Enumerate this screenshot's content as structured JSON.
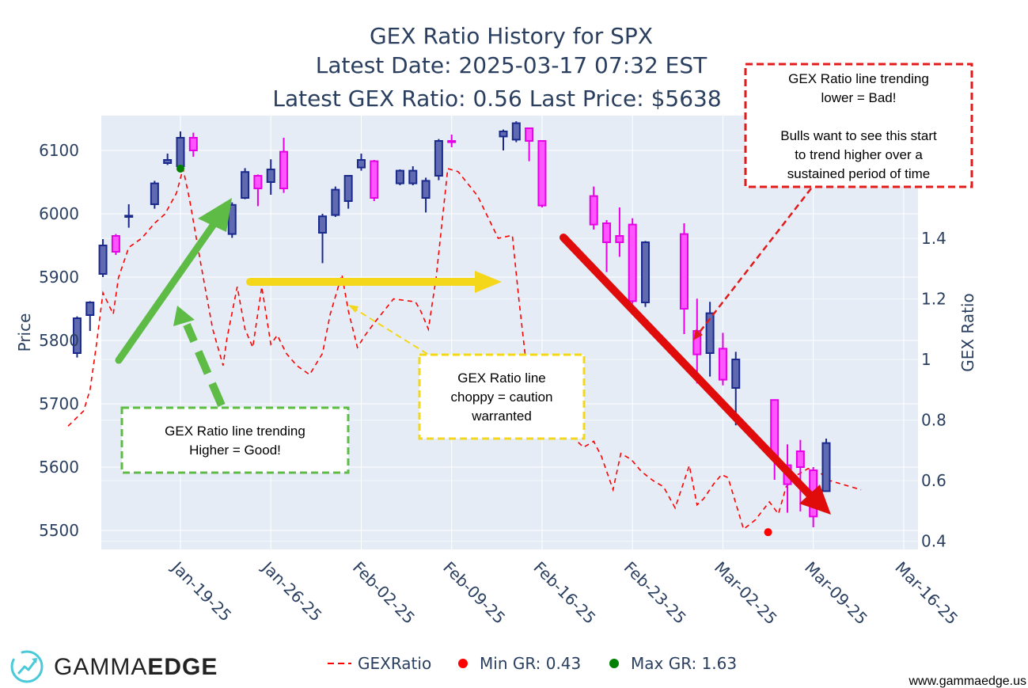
{
  "chart_data": {
    "type": "candlestick+line",
    "title": [
      "GEX Ratio History for SPX",
      "Latest Date: 2025-03-17 07:32 EST",
      "Latest GEX Ratio: 0.56 Last Price: $5638"
    ],
    "ylabel": "Price",
    "y2label": "GEX Ratio",
    "ylim": [
      5470,
      6155
    ],
    "y2lim": [
      0.373,
      1.805
    ],
    "y_ticks": [
      "5500",
      "5600",
      "5700",
      "5800",
      "5900",
      "6000",
      "6100"
    ],
    "y2_ticks": [
      "0.4",
      "0.6",
      "0.8",
      "1",
      "1.2",
      "1.4"
    ],
    "x_ticks": [
      "Jan-19-25",
      "Jan-26-25",
      "Feb-02-25",
      "Feb-09-25",
      "Feb-16-25",
      "Feb-23-25",
      "Mar-02-25",
      "Mar-09-25",
      "Mar-16-25"
    ],
    "candles": [
      {
        "day": -8.0,
        "o": 5780,
        "h": 5838,
        "l": 5773,
        "c": 5835
      },
      {
        "day": -7.0,
        "o": 5840,
        "h": 5862,
        "l": 5815,
        "c": 5860
      },
      {
        "day": -6.0,
        "o": 5905,
        "h": 5960,
        "l": 5900,
        "c": 5950
      },
      {
        "day": -5.0,
        "o": 5965,
        "h": 5968,
        "l": 5935,
        "c": 5940
      },
      {
        "day": -4.0,
        "o": 5995,
        "h": 6015,
        "l": 5978,
        "c": 5997
      },
      {
        "day": -2.0,
        "o": 6015,
        "h": 6052,
        "l": 6008,
        "c": 6048
      },
      {
        "day": -1.0,
        "o": 6080,
        "h": 6095,
        "l": 6077,
        "c": 6085
      },
      {
        "day": 0.0,
        "o": 6075,
        "h": 6130,
        "l": 6075,
        "c": 6120
      },
      {
        "day": 1.0,
        "o": 6120,
        "h": 6128,
        "l": 6090,
        "c": 6100
      },
      {
        "day": 4.0,
        "o": 5968,
        "h": 6018,
        "l": 5962,
        "c": 6014
      },
      {
        "day": 5.0,
        "o": 6025,
        "h": 6072,
        "l": 6023,
        "c": 6066
      },
      {
        "day": 6.0,
        "o": 6060,
        "h": 6062,
        "l": 6012,
        "c": 6040
      },
      {
        "day": 7.0,
        "o": 6050,
        "h": 6086,
        "l": 6030,
        "c": 6070
      },
      {
        "day": 8.0,
        "o": 6098,
        "h": 6120,
        "l": 6033,
        "c": 6040
      },
      {
        "day": 11.0,
        "o": 5970,
        "h": 6000,
        "l": 5922,
        "c": 5996
      },
      {
        "day": 12.0,
        "o": 5998,
        "h": 6043,
        "l": 5995,
        "c": 6038
      },
      {
        "day": 13.0,
        "o": 6020,
        "h": 6060,
        "l": 6008,
        "c": 6060
      },
      {
        "day": 14.0,
        "o": 6073,
        "h": 6095,
        "l": 6068,
        "c": 6085
      },
      {
        "day": 15.0,
        "o": 6083,
        "h": 6085,
        "l": 6020,
        "c": 6025
      },
      {
        "day": 17.0,
        "o": 6048,
        "h": 6070,
        "l": 6045,
        "c": 6068
      },
      {
        "day": 18.0,
        "o": 6048,
        "h": 6075,
        "l": 6045,
        "c": 6068
      },
      {
        "day": 19.0,
        "o": 6025,
        "h": 6057,
        "l": 6002,
        "c": 6052
      },
      {
        "day": 20.0,
        "o": 6060,
        "h": 6118,
        "l": 6053,
        "c": 6115
      },
      {
        "day": 21.0,
        "o": 6115,
        "h": 6125,
        "l": 6105,
        "c": 6113
      },
      {
        "day": 25.0,
        "o": 6122,
        "h": 6133,
        "l": 6100,
        "c": 6130
      },
      {
        "day": 26.0,
        "o": 6117,
        "h": 6146,
        "l": 6113,
        "c": 6143
      },
      {
        "day": 27.0,
        "o": 6135,
        "h": 6136,
        "l": 6083,
        "c": 6115
      },
      {
        "day": 28.0,
        "o": 6115,
        "h": 6116,
        "l": 6010,
        "c": 6013
      },
      {
        "day": 32.0,
        "o": 6028,
        "h": 6043,
        "l": 5975,
        "c": 5983
      },
      {
        "day": 33.0,
        "o": 5985,
        "h": 5990,
        "l": 5908,
        "c": 5955
      },
      {
        "day": 34.0,
        "o": 5965,
        "h": 6010,
        "l": 5932,
        "c": 5955
      },
      {
        "day": 35.0,
        "o": 5983,
        "h": 5993,
        "l": 5858,
        "c": 5862
      },
      {
        "day": 36.0,
        "o": 5860,
        "h": 5957,
        "l": 5853,
        "c": 5955
      },
      {
        "day": 39.0,
        "o": 5968,
        "h": 5985,
        "l": 5810,
        "c": 5850
      },
      {
        "day": 40.0,
        "o": 5815,
        "h": 5866,
        "l": 5732,
        "c": 5778
      },
      {
        "day": 41.0,
        "o": 5780,
        "h": 5861,
        "l": 5743,
        "c": 5843
      },
      {
        "day": 42.0,
        "o": 5787,
        "h": 5812,
        "l": 5729,
        "c": 5738
      },
      {
        "day": 43.0,
        "o": 5725,
        "h": 5782,
        "l": 5666,
        "c": 5770
      },
      {
        "day": 46.0,
        "o": 5706,
        "h": 5706,
        "l": 5580,
        "c": 5614
      },
      {
        "day": 47.0,
        "o": 5603,
        "h": 5636,
        "l": 5528,
        "c": 5573
      },
      {
        "day": 48.0,
        "o": 5625,
        "h": 5643,
        "l": 5530,
        "c": 5600
      },
      {
        "day": 49.0,
        "o": 5595,
        "h": 5600,
        "l": 5505,
        "c": 5522
      },
      {
        "day": 50.0,
        "o": 5562,
        "h": 5645,
        "l": 5562,
        "c": 5638
      }
    ],
    "series": [
      {
        "name": "GEXRatio",
        "color": "#ff0000",
        "style": "dashed",
        "axis": "y2",
        "x": [
          -8.7,
          -7.5,
          -7.0,
          -6.5,
          -6.0,
          -5.2,
          -4.8,
          -4.0,
          -3.0,
          -2.0,
          -1.2,
          -0.3,
          0.2,
          0.7,
          1.6,
          2.5,
          3.3,
          3.6,
          4.4,
          5.0,
          5.6,
          6.3,
          7.0,
          7.5,
          8.2,
          9.0,
          10.0,
          11.0,
          11.6,
          12.5,
          13.0,
          13.7,
          14.3,
          15.0,
          16.5,
          18.2,
          18.6,
          19.2,
          19.8,
          20.7,
          21.5,
          23.0,
          24.6,
          25.7,
          26.2,
          27.0,
          27.6,
          29.0,
          30.0,
          31.2,
          32.0,
          32.6,
          33.5,
          34.1,
          34.9,
          35.7,
          36.6,
          37.4,
          38.3,
          39.4,
          40.0,
          40.5,
          41.3,
          41.9,
          42.4,
          43.6,
          44.5,
          45.6,
          46.3,
          46.9,
          47.8,
          48.6,
          49.4,
          50.3,
          51.1,
          51.9,
          52.7
        ],
        "y": [
          0.78,
          0.83,
          0.9,
          1.05,
          1.22,
          1.15,
          1.27,
          1.37,
          1.4,
          1.45,
          1.48,
          1.55,
          1.63,
          1.53,
          1.31,
          1.1,
          0.98,
          1.07,
          1.24,
          1.1,
          1.04,
          1.24,
          1.05,
          1.08,
          1.02,
          0.98,
          0.95,
          1.02,
          1.15,
          1.28,
          1.16,
          1.04,
          1.08,
          1.12,
          1.2,
          1.19,
          1.16,
          1.1,
          1.27,
          1.63,
          1.62,
          1.54,
          1.4,
          1.41,
          1.2,
          0.9,
          0.86,
          0.8,
          0.76,
          0.71,
          0.73,
          0.68,
          0.57,
          0.69,
          0.67,
          0.63,
          0.6,
          0.58,
          0.51,
          0.65,
          0.52,
          0.54,
          0.59,
          0.62,
          0.61,
          0.44,
          0.47,
          0.53,
          0.49,
          0.58,
          0.62,
          0.64,
          0.63,
          0.6,
          0.59,
          0.58,
          0.57
        ]
      },
      {
        "name": "Min GR: 0.43",
        "color": "#ff0000",
        "style": "marker",
        "axis": "y2",
        "x": [
          45.5
        ],
        "y": [
          0.43
        ]
      },
      {
        "name": "Max GR: 1.63",
        "color": "#008000",
        "style": "marker",
        "axis": "y2",
        "x": [
          0.0
        ],
        "y": [
          1.63
        ]
      }
    ],
    "legend": [
      {
        "label": "GEXRatio",
        "color": "#ff0000",
        "kind": "dash"
      },
      {
        "label": "Min GR: 0.43",
        "color": "#ff0000",
        "kind": "dot"
      },
      {
        "label": "Max GR: 1.63",
        "color": "#008000",
        "kind": "dot"
      }
    ],
    "annotations": [
      {
        "lines": [
          "GEX Ratio line trending",
          "Higher = Good!"
        ],
        "border": "#5dbb46"
      },
      {
        "lines": [
          "GEX Ratio line",
          "choppy = caution",
          "warranted"
        ],
        "border": "#f4d71a"
      },
      {
        "lines": [
          "GEX Ratio line trending",
          "lower = Bad!",
          "",
          "Bulls want to see this start",
          "to trend higher over a",
          "sustained period of time"
        ],
        "border": "#e01b1b"
      }
    ],
    "colors": {
      "increasing": "#1a2a8c",
      "increasing_fill": "#5f6ab0",
      "decreasing": "#e600e6",
      "decreasing_fill": "#ff55ff",
      "plot_bg": "#e5ecf6"
    }
  },
  "brand": {
    "name_light": "GAMMA",
    "name_bold": "EDGE",
    "icon": "trend-up-circle-icon"
  },
  "footer": {
    "url": "www.gammaedge.us"
  }
}
